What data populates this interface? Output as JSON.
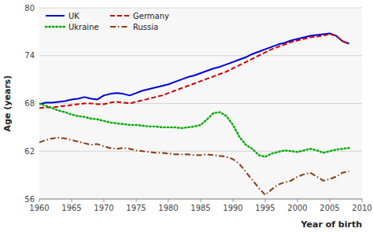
{
  "chart_data": {
    "type": "line",
    "xlabel": "Year of birth",
    "ylabel": "Age (years)",
    "xlim": [
      1960,
      2010
    ],
    "ylim": [
      56,
      80
    ],
    "xticks": [
      1960,
      1965,
      1970,
      1975,
      1980,
      1985,
      1990,
      1995,
      2000,
      2005,
      2010
    ],
    "yticks": [
      56,
      62,
      68,
      74,
      80
    ],
    "grid": true,
    "legend": "upper left",
    "x": [
      1960,
      1961,
      1962,
      1963,
      1964,
      1965,
      1966,
      1967,
      1968,
      1969,
      1970,
      1971,
      1972,
      1973,
      1974,
      1975,
      1976,
      1977,
      1978,
      1979,
      1980,
      1981,
      1982,
      1983,
      1984,
      1985,
      1986,
      1987,
      1988,
      1989,
      1990,
      1991,
      1992,
      1993,
      1994,
      1995,
      1996,
      1997,
      1998,
      1999,
      2000,
      2001,
      2002,
      2003,
      2004,
      2005,
      2006,
      2007,
      2008
    ],
    "series": [
      {
        "name": "UK",
        "color": "#0000cc",
        "line_style": "solid",
        "values": [
          67.9,
          68.1,
          68.1,
          68.2,
          68.3,
          68.5,
          68.6,
          68.8,
          68.6,
          68.5,
          69.0,
          69.2,
          69.3,
          69.2,
          69.0,
          69.3,
          69.6,
          69.8,
          70.0,
          70.2,
          70.4,
          70.7,
          71.0,
          71.3,
          71.5,
          71.8,
          72.1,
          72.4,
          72.6,
          72.9,
          73.2,
          73.5,
          73.8,
          74.2,
          74.5,
          74.8,
          75.1,
          75.4,
          75.6,
          75.9,
          76.1,
          76.3,
          76.5,
          76.6,
          76.7,
          76.8,
          76.5,
          75.8,
          75.5
        ]
      },
      {
        "name": "Germany",
        "color": "#cc0000",
        "line_style": "dashed",
        "values": [
          67.4,
          67.5,
          67.5,
          67.6,
          67.7,
          67.8,
          67.9,
          68.0,
          68.0,
          67.9,
          67.9,
          68.1,
          68.2,
          68.1,
          68.0,
          68.2,
          68.4,
          68.6,
          68.8,
          69.0,
          69.3,
          69.6,
          69.9,
          70.2,
          70.5,
          70.8,
          71.1,
          71.4,
          71.7,
          72.0,
          72.4,
          72.8,
          73.2,
          73.6,
          74.0,
          74.4,
          74.8,
          75.1,
          75.4,
          75.7,
          75.9,
          76.1,
          76.3,
          76.4,
          76.5,
          76.7,
          76.5,
          75.8,
          75.5
        ]
      },
      {
        "name": "Ukraine",
        "color": "#00aa00",
        "line_style": "dotted",
        "values": [
          68.0,
          67.7,
          67.4,
          67.1,
          66.9,
          66.6,
          66.4,
          66.3,
          66.1,
          66.0,
          65.8,
          65.6,
          65.5,
          65.4,
          65.3,
          65.3,
          65.2,
          65.1,
          65.1,
          65.0,
          65.0,
          65.0,
          64.9,
          65.0,
          65.1,
          65.3,
          66.0,
          66.8,
          66.9,
          66.4,
          65.3,
          63.8,
          62.8,
          62.3,
          61.5,
          61.3,
          61.7,
          61.9,
          62.1,
          62.0,
          61.9,
          62.1,
          62.3,
          62.1,
          61.8,
          62.0,
          62.2,
          62.3,
          62.4
        ]
      },
      {
        "name": "Russia",
        "color": "#8B3A10",
        "line_style": "dashdot",
        "values": [
          63.1,
          63.4,
          63.6,
          63.7,
          63.6,
          63.4,
          63.2,
          63.0,
          62.8,
          62.9,
          62.6,
          62.4,
          62.3,
          62.4,
          62.3,
          62.1,
          62.0,
          61.9,
          61.8,
          61.8,
          61.7,
          61.6,
          61.6,
          61.6,
          61.5,
          61.5,
          61.6,
          61.5,
          61.4,
          61.3,
          61.0,
          60.4,
          59.4,
          58.4,
          57.4,
          56.5,
          57.2,
          57.8,
          58.1,
          58.3,
          58.8,
          59.1,
          59.3,
          58.8,
          58.3,
          58.5,
          58.8,
          59.3,
          59.5
        ]
      }
    ]
  }
}
